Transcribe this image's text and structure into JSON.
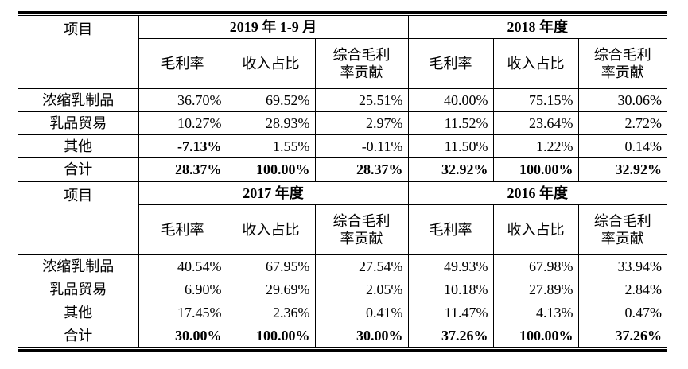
{
  "header_block_1": {
    "row_label": "项目",
    "period_a": "2019 年 1-9 月",
    "period_b": "2018 年度",
    "sub_headers": [
      "毛利率",
      "收入占比",
      "综合毛利\n率贡献",
      "毛利率",
      "收入占比",
      "综合毛利\n率贡献"
    ]
  },
  "block_1_rows": [
    {
      "label": "浓缩乳制品",
      "values": [
        "36.70%",
        "69.52%",
        "25.51%",
        "40.00%",
        "75.15%",
        "30.06%"
      ]
    },
    {
      "label": "乳品贸易",
      "values": [
        "10.27%",
        "28.93%",
        "2.97%",
        "11.52%",
        "23.64%",
        "2.72%"
      ]
    },
    {
      "label": "其他",
      "values": [
        "-7.13%",
        "1.55%",
        "-0.11%",
        "11.50%",
        "1.22%",
        "0.14%"
      ]
    },
    {
      "label": "合计",
      "values": [
        "28.37%",
        "100.00%",
        "28.37%",
        "32.92%",
        "100.00%",
        "32.92%"
      ]
    }
  ],
  "header_block_2": {
    "row_label": "项目",
    "period_a": "2017 年度",
    "period_b": "2016 年度",
    "sub_headers": [
      "毛利率",
      "收入占比",
      "综合毛利\n率贡献",
      "毛利率",
      "收入占比",
      "综合毛利\n率贡献"
    ]
  },
  "block_2_rows": [
    {
      "label": "浓缩乳制品",
      "values": [
        "40.54%",
        "67.95%",
        "27.54%",
        "49.93%",
        "67.98%",
        "33.94%"
      ]
    },
    {
      "label": "乳品贸易",
      "values": [
        "6.90%",
        "29.69%",
        "2.05%",
        "10.18%",
        "27.89%",
        "2.84%"
      ]
    },
    {
      "label": "其他",
      "values": [
        "17.45%",
        "2.36%",
        "0.41%",
        "11.47%",
        "4.13%",
        "0.47%"
      ]
    },
    {
      "label": "合计",
      "values": [
        "30.00%",
        "100.00%",
        "30.00%",
        "37.26%",
        "100.00%",
        "37.26%"
      ]
    }
  ]
}
